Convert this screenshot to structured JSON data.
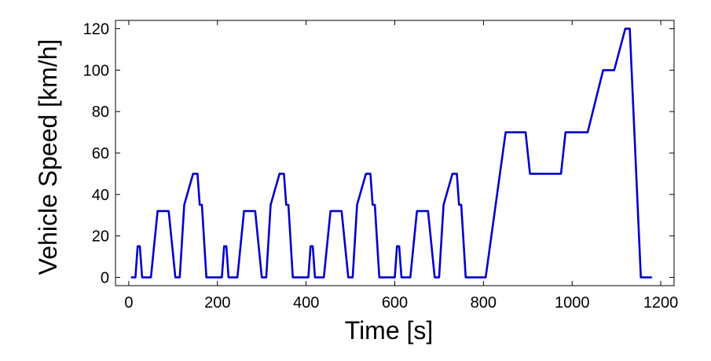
{
  "chart_data": {
    "type": "line",
    "xlabel": "Time [s]",
    "ylabel": "Vehicle Speed [km/h]",
    "xlim": [
      -30,
      1230
    ],
    "ylim": [
      -4,
      124
    ],
    "xticks": [
      0,
      200,
      400,
      600,
      800,
      1000,
      1200
    ],
    "yticks": [
      0,
      20,
      40,
      60,
      80,
      100,
      120
    ],
    "grid": false,
    "line_color": "#0000cc",
    "series": [
      {
        "x": [
          5,
          15,
          20,
          25,
          30,
          50,
          65,
          70,
          85,
          90,
          105,
          115,
          125,
          145,
          150,
          155,
          160,
          165,
          175,
          190,
          200,
          210,
          215,
          220,
          225,
          245,
          260,
          265,
          280,
          285,
          300,
          310,
          320,
          340,
          345,
          350,
          355,
          360,
          370,
          385,
          395,
          405,
          410,
          415,
          420,
          440,
          455,
          460,
          475,
          480,
          495,
          505,
          515,
          535,
          540,
          545,
          550,
          555,
          565,
          580,
          590,
          600,
          605,
          610,
          615,
          635,
          650,
          655,
          670,
          675,
          690,
          700,
          710,
          730,
          735,
          740,
          745,
          750,
          760,
          775,
          790,
          805,
          850,
          895,
          905,
          975,
          985,
          1035,
          1070,
          1095,
          1120,
          1130,
          1155,
          1165,
          1180
        ],
        "y": [
          0,
          0,
          15,
          15,
          0,
          0,
          32,
          32,
          32,
          32,
          0,
          0,
          35,
          50,
          50,
          50,
          35,
          35,
          0,
          0,
          0,
          0,
          15,
          15,
          0,
          0,
          32,
          32,
          32,
          32,
          0,
          0,
          35,
          50,
          50,
          50,
          35,
          35,
          0,
          0,
          0,
          0,
          15,
          15,
          0,
          0,
          32,
          32,
          32,
          32,
          0,
          0,
          35,
          50,
          50,
          50,
          35,
          35,
          0,
          0,
          0,
          0,
          15,
          15,
          0,
          0,
          32,
          32,
          32,
          32,
          0,
          0,
          35,
          50,
          50,
          50,
          35,
          35,
          0,
          0,
          0,
          0,
          70,
          70,
          50,
          50,
          70,
          70,
          100,
          100,
          120,
          120,
          0,
          0,
          0
        ]
      }
    ]
  }
}
